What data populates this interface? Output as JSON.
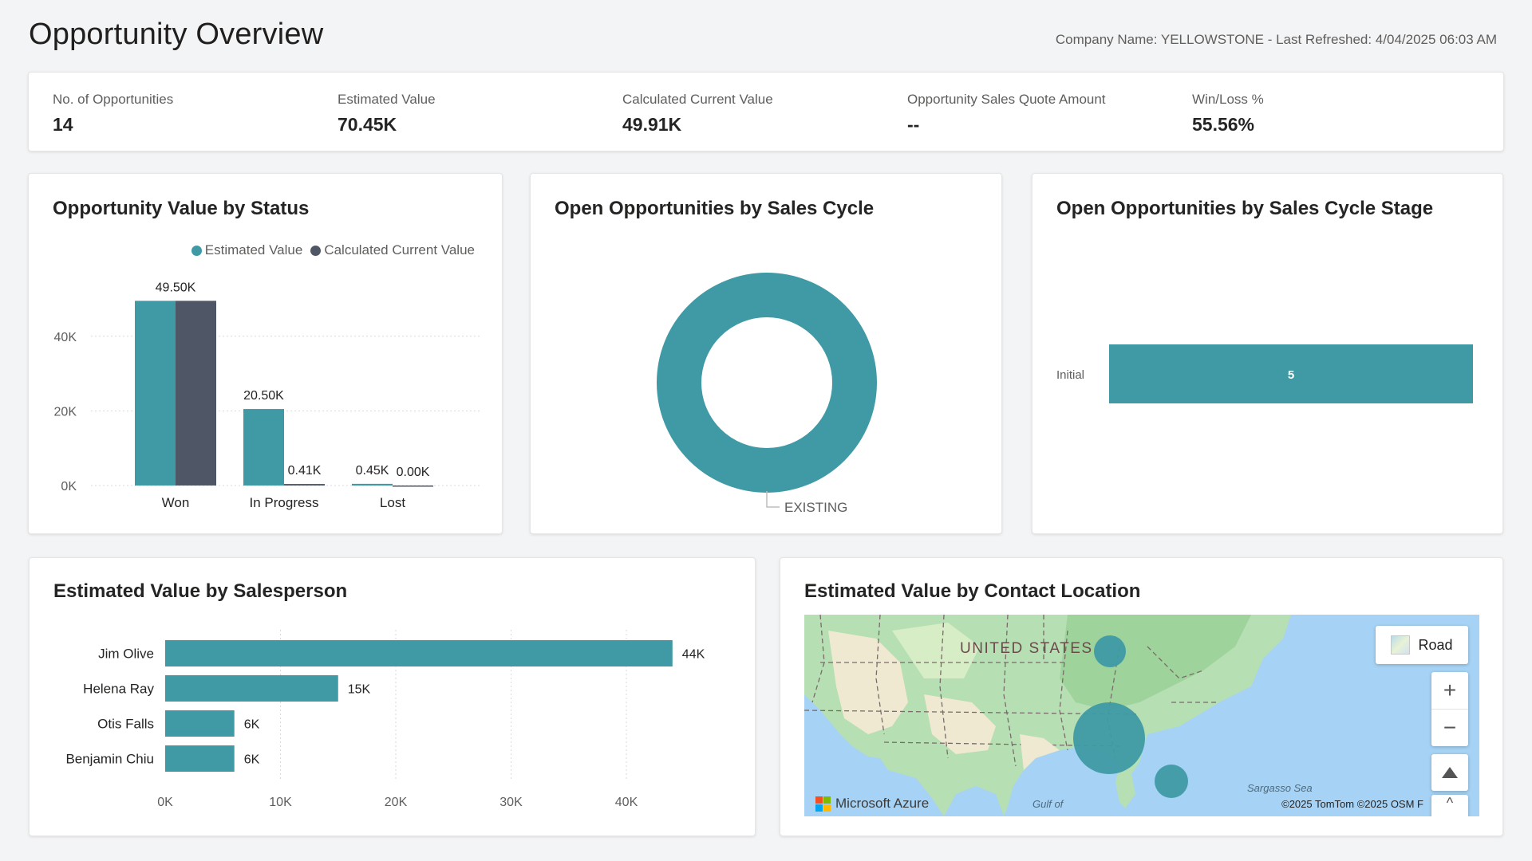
{
  "header": {
    "title": "Opportunity Overview",
    "company_info": "Company Name: YELLOWSTONE - Last Refreshed: 4/04/2025 06:03 AM"
  },
  "kpis": [
    {
      "label": "No. of Opportunities",
      "value": "14"
    },
    {
      "label": "Estimated Value",
      "value": "70.45K"
    },
    {
      "label": "Calculated Current Value",
      "value": "49.91K"
    },
    {
      "label": "Opportunity Sales Quote Amount",
      "value": "--"
    },
    {
      "label": "Win/Loss %",
      "value": "55.56%"
    }
  ],
  "colors": {
    "teal": "#3f9aa5",
    "slate": "#4f5665"
  },
  "status_chart": {
    "title": "Opportunity Value by Status",
    "legend": [
      "Estimated Value",
      "Calculated Current Value"
    ],
    "y_ticks": [
      "40K",
      "20K",
      "0K"
    ],
    "categories": [
      "Won",
      "In Progress",
      "Lost"
    ],
    "estimated": [
      49.5,
      20.5,
      0.45
    ],
    "current": [
      49.5,
      0.41,
      0.0
    ],
    "estimated_labels": [
      "49.50K",
      "20.50K",
      "0.45K"
    ],
    "current_labels": [
      "",
      "0.41K",
      "0.00K"
    ]
  },
  "sales_cycle": {
    "title": "Open Opportunities by Sales Cycle",
    "slice_label": "EXISTING"
  },
  "cycle_stage": {
    "title": "Open Opportunities by Sales Cycle Stage",
    "category": "Initial",
    "value": "5"
  },
  "salesperson": {
    "title": "Estimated Value by Salesperson",
    "names": [
      "Jim Olive",
      "Helena Ray",
      "Otis Falls",
      "Benjamin Chiu"
    ],
    "values": [
      44,
      15,
      6,
      6
    ],
    "value_labels": [
      "44K",
      "15K",
      "6K",
      "6K"
    ],
    "x_ticks": [
      "0K",
      "10K",
      "20K",
      "30K",
      "40K"
    ]
  },
  "location": {
    "title": "Estimated Value by Contact Location",
    "road_label": "Road",
    "country_label": "UNITED STATES",
    "gulf_label": "Gulf of",
    "sea_label": "Sargasso Sea",
    "provider": "Microsoft Azure",
    "attribution": "©2025 TomTom  ©2025 OSM  F"
  },
  "chart_data": [
    {
      "type": "bar",
      "title": "Opportunity Value by Status",
      "categories": [
        "Won",
        "In Progress",
        "Lost"
      ],
      "series": [
        {
          "name": "Estimated Value",
          "values": [
            49500,
            20500,
            450
          ]
        },
        {
          "name": "Calculated Current Value",
          "values": [
            49500,
            410,
            0
          ]
        }
      ],
      "ylim": [
        0,
        55000
      ]
    },
    {
      "type": "pie",
      "title": "Open Opportunities by Sales Cycle",
      "categories": [
        "EXISTING"
      ],
      "values": [
        5
      ]
    },
    {
      "type": "bar",
      "title": "Open Opportunities by Sales Cycle Stage",
      "categories": [
        "Initial"
      ],
      "values": [
        5
      ]
    },
    {
      "type": "bar",
      "title": "Estimated Value by Salesperson",
      "categories": [
        "Jim Olive",
        "Helena Ray",
        "Otis Falls",
        "Benjamin Chiu"
      ],
      "values": [
        44000,
        15000,
        6000,
        6000
      ],
      "xlim": [
        0,
        47000
      ]
    }
  ]
}
